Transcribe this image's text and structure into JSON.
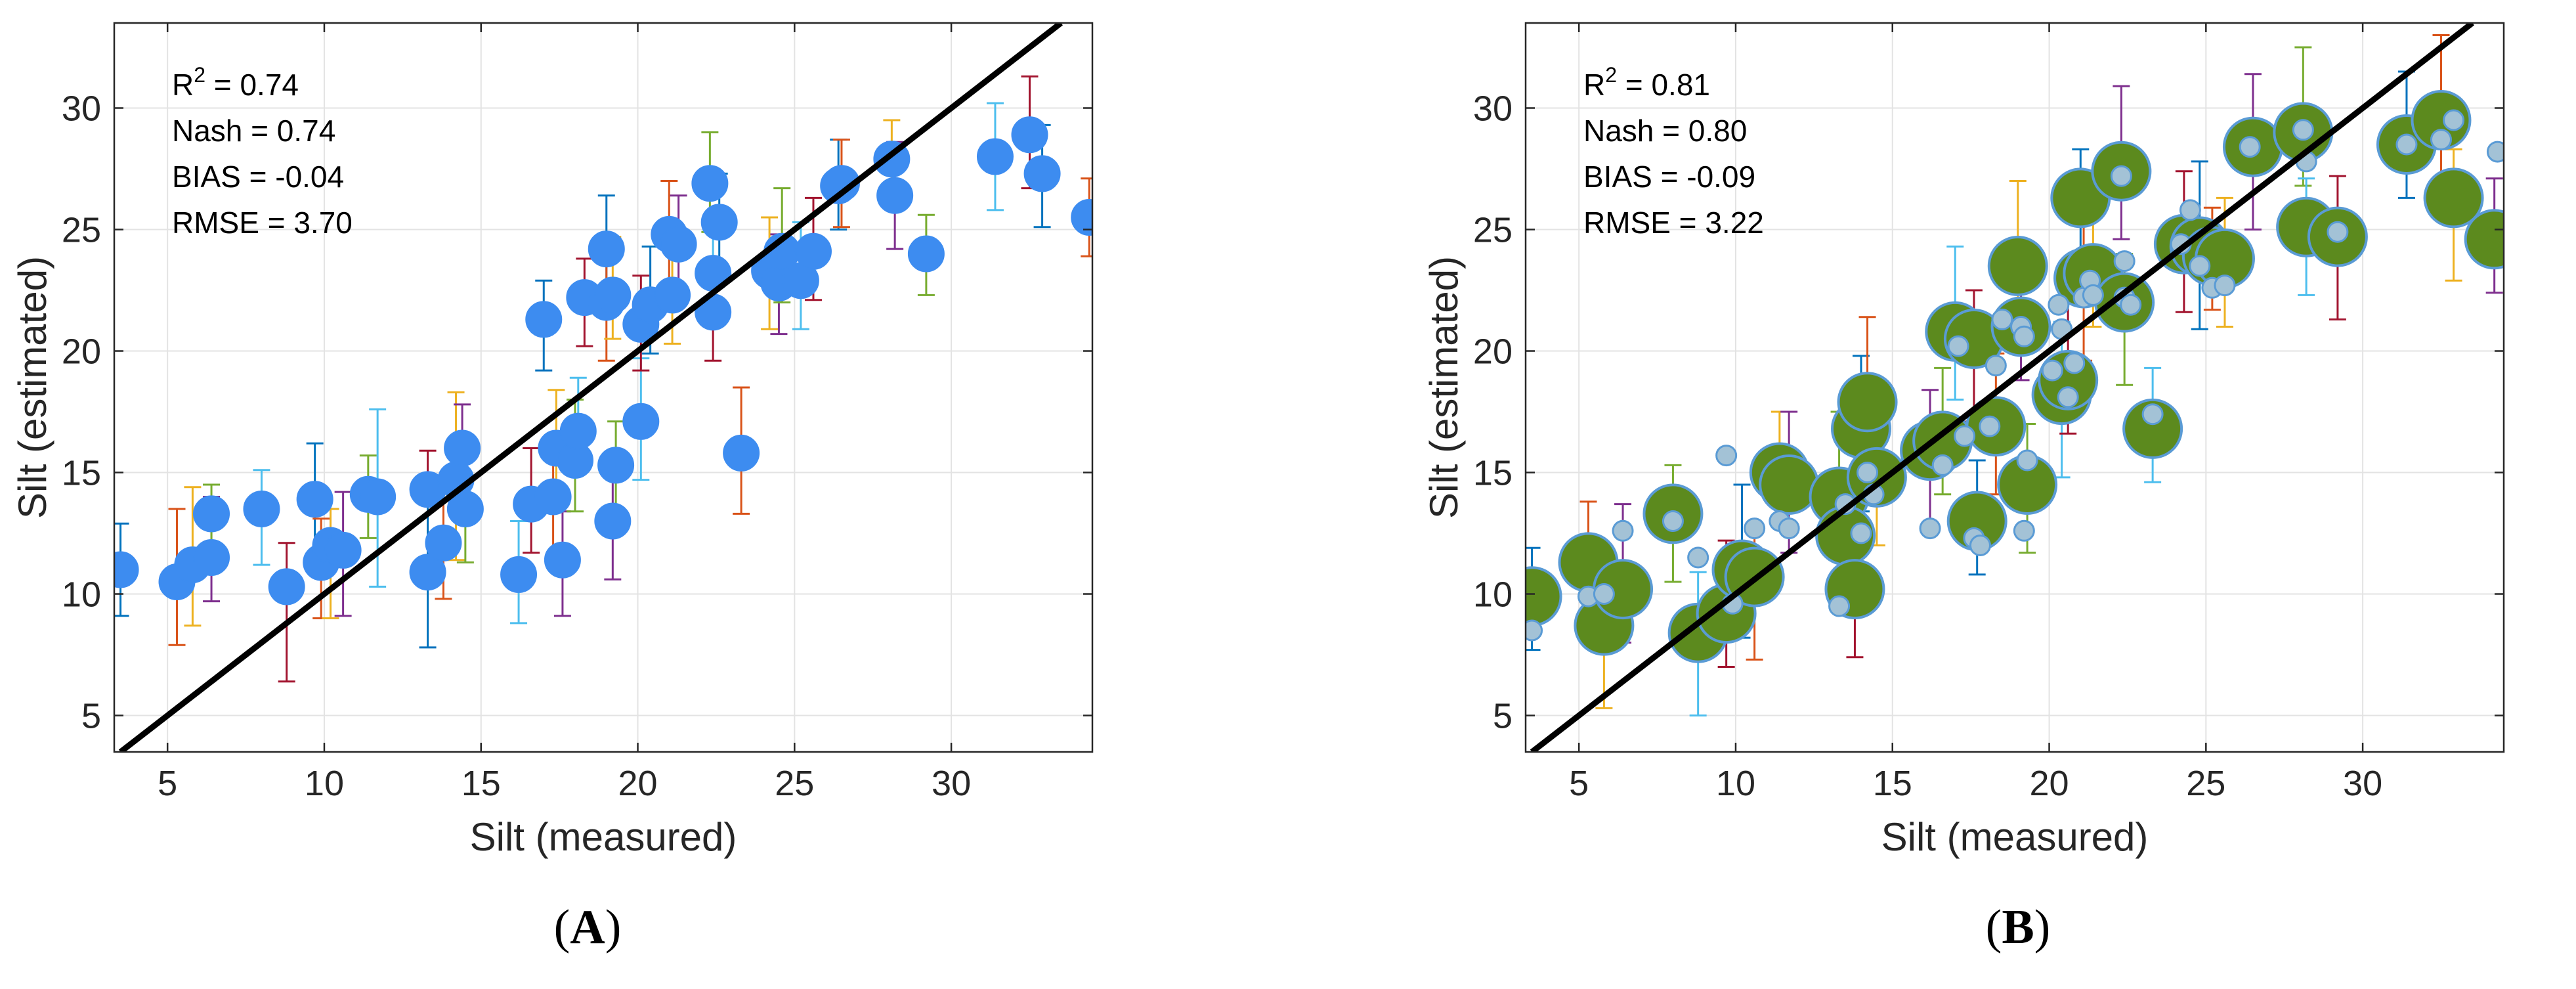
{
  "chart_data": [
    {
      "type": "scatter",
      "panel_label": "A",
      "xlabel": "Silt (measured)",
      "ylabel": "Silt (estimated)",
      "xlim": [
        3.3,
        34.5
      ],
      "ylim": [
        3.5,
        33.5
      ],
      "xticks": [
        5,
        10,
        15,
        20,
        25,
        30
      ],
      "yticks": [
        5,
        10,
        15,
        20,
        25,
        30
      ],
      "grid": true,
      "reference_line": "1:1",
      "stats": [
        "Nash = 0.74",
        "BIAS = -0.04",
        "RMSE = 3.70"
      ],
      "r2_prefix": "R",
      "r2_sup": "2",
      "r2_value": " = 0.74",
      "marker_color": "#3D8CF0",
      "points": [
        [
          3.5,
          11.0,
          1.9,
          1.9
        ],
        [
          5.3,
          10.5,
          2.6,
          3.0
        ],
        [
          5.8,
          11.2,
          2.5,
          3.2
        ],
        [
          6.4,
          11.5,
          1.8,
          2.5
        ],
        [
          6.4,
          13.3,
          1.6,
          1.2
        ],
        [
          8.0,
          13.5,
          2.3,
          1.6
        ],
        [
          8.8,
          10.3,
          3.9,
          1.8
        ],
        [
          9.7,
          13.9,
          2.3,
          2.3
        ],
        [
          9.9,
          11.3,
          2.3,
          1.8
        ],
        [
          10.2,
          12.0,
          3.0,
          1.5
        ],
        [
          10.6,
          11.8,
          2.7,
          2.4
        ],
        [
          11.4,
          14.1,
          1.8,
          1.6
        ],
        [
          11.7,
          14.0,
          3.7,
          3.6
        ],
        [
          13.3,
          14.3,
          3.0,
          1.6
        ],
        [
          13.3,
          10.9,
          3.1,
          3.2
        ],
        [
          13.8,
          12.1,
          2.3,
          1.8
        ],
        [
          14.2,
          14.7,
          3.3,
          3.6
        ],
        [
          14.4,
          16.0,
          1.6,
          1.8
        ],
        [
          14.5,
          13.5,
          2.2,
          2.0
        ],
        [
          16.2,
          10.8,
          2.0,
          2.2
        ],
        [
          16.6,
          13.7,
          2.0,
          2.3
        ],
        [
          17.0,
          21.3,
          2.1,
          1.6
        ],
        [
          17.3,
          14.0,
          2.5,
          2.2
        ],
        [
          17.4,
          16.0,
          2.3,
          2.4
        ],
        [
          17.6,
          11.4,
          2.3,
          2.0
        ],
        [
          18.0,
          15.5,
          2.1,
          2.5
        ],
        [
          18.1,
          16.7,
          1.6,
          2.2
        ],
        [
          18.3,
          22.2,
          2.0,
          1.6
        ],
        [
          19.0,
          24.2,
          2.3,
          2.2
        ],
        [
          19.0,
          22.0,
          2.4,
          2.0
        ],
        [
          19.2,
          22.3,
          1.8,
          2.4
        ],
        [
          19.2,
          13.0,
          2.4,
          2.2
        ],
        [
          19.3,
          15.3,
          2.3,
          1.8
        ],
        [
          20.1,
          17.1,
          2.4,
          2.6
        ],
        [
          20.1,
          21.1,
          1.9,
          2.0
        ],
        [
          20.4,
          21.9,
          2.0,
          2.4
        ],
        [
          21.0,
          24.8,
          2.8,
          2.2
        ],
        [
          21.1,
          22.3,
          2.0,
          2.2
        ],
        [
          21.3,
          24.4,
          2.2,
          2.0
        ],
        [
          22.3,
          26.9,
          2.0,
          2.1
        ],
        [
          22.4,
          23.2,
          2.0,
          2.0
        ],
        [
          22.4,
          21.6,
          2.0,
          2.2
        ],
        [
          22.6,
          25.3,
          2.3,
          2.0
        ],
        [
          23.3,
          15.8,
          2.5,
          2.7
        ],
        [
          24.2,
          23.3,
          2.4,
          2.2
        ],
        [
          24.5,
          22.8,
          2.1,
          2.0
        ],
        [
          24.6,
          24.1,
          2.1,
          2.6
        ],
        [
          25.2,
          22.9,
          2.0,
          2.4
        ],
        [
          25.6,
          24.1,
          2.0,
          2.2
        ],
        [
          26.4,
          26.8,
          1.8,
          1.9
        ],
        [
          26.5,
          26.9,
          1.8,
          1.8
        ],
        [
          28.1,
          27.9,
          1.8,
          1.6
        ],
        [
          28.2,
          26.4,
          2.2,
          2.2
        ],
        [
          29.2,
          24.0,
          1.7,
          1.6
        ],
        [
          31.4,
          28.0,
          2.2,
          2.2
        ],
        [
          32.5,
          28.9,
          2.2,
          2.4
        ],
        [
          32.9,
          27.3,
          2.2,
          2.0
        ],
        [
          34.4,
          25.5,
          1.6,
          1.6
        ]
      ]
    },
    {
      "type": "scatter",
      "panel_label": "B",
      "xlabel": "Silt (measured)",
      "ylabel": "Silt (estimated)",
      "xlim": [
        3.3,
        34.5
      ],
      "ylim": [
        3.5,
        33.5
      ],
      "xticks": [
        5,
        10,
        15,
        20,
        25,
        30
      ],
      "yticks": [
        5,
        10,
        15,
        20,
        25,
        30
      ],
      "grid": true,
      "reference_line": "1:1",
      "stats": [
        "Nash = 0.80",
        "BIAS = -0.09",
        "RMSE = 3.22"
      ],
      "r2_prefix": "R",
      "r2_sup": "2",
      "r2_value": " = 0.81",
      "big_marker_color": "#5C8A1E",
      "big_marker_edge": "#5A9BD5",
      "small_marker_color": "#A3C2D6",
      "small_marker_edge": "#5A9BD5",
      "big_points": [
        [
          3.5,
          9.9
        ],
        [
          5.3,
          11.3
        ],
        [
          5.8,
          8.7
        ],
        [
          6.4,
          10.2
        ],
        [
          8.0,
          13.3
        ],
        [
          8.8,
          8.4
        ],
        [
          9.7,
          9.2
        ],
        [
          10.2,
          11.0
        ],
        [
          10.6,
          10.7
        ],
        [
          11.4,
          15.0
        ],
        [
          11.7,
          14.5
        ],
        [
          13.3,
          14.0
        ],
        [
          13.5,
          12.4
        ],
        [
          13.8,
          10.2
        ],
        [
          14.0,
          16.8
        ],
        [
          14.2,
          17.9
        ],
        [
          14.5,
          14.8
        ],
        [
          16.2,
          15.9
        ],
        [
          16.6,
          16.3
        ],
        [
          17.0,
          20.8
        ],
        [
          17.6,
          20.5
        ],
        [
          17.7,
          13.0
        ],
        [
          18.3,
          16.9
        ],
        [
          19.0,
          23.5
        ],
        [
          19.1,
          21.0
        ],
        [
          19.3,
          14.5
        ],
        [
          20.4,
          18.2
        ],
        [
          20.6,
          18.8
        ],
        [
          21.0,
          26.3
        ],
        [
          21.1,
          23.0
        ],
        [
          21.4,
          23.2
        ],
        [
          22.3,
          27.4
        ],
        [
          22.4,
          22.0
        ],
        [
          23.3,
          16.8
        ],
        [
          24.3,
          24.4
        ],
        [
          24.8,
          24.3
        ],
        [
          25.2,
          23.9
        ],
        [
          25.6,
          23.8
        ],
        [
          26.5,
          28.4
        ],
        [
          28.1,
          29.0
        ],
        [
          28.2,
          25.1
        ],
        [
          29.2,
          24.7
        ],
        [
          31.4,
          28.5
        ],
        [
          32.5,
          29.5
        ],
        [
          32.9,
          26.3
        ],
        [
          34.2,
          24.6
        ]
      ],
      "small_points": [
        [
          3.5,
          8.5
        ],
        [
          5.3,
          9.9
        ],
        [
          5.8,
          10.0
        ],
        [
          6.4,
          12.6
        ],
        [
          8.0,
          13.0
        ],
        [
          8.8,
          11.5
        ],
        [
          9.7,
          15.7
        ],
        [
          9.9,
          9.6
        ],
        [
          10.6,
          12.7
        ],
        [
          11.4,
          13.0
        ],
        [
          11.7,
          12.7
        ],
        [
          13.3,
          9.5
        ],
        [
          13.5,
          13.7
        ],
        [
          14.0,
          12.5
        ],
        [
          14.2,
          15.0
        ],
        [
          14.4,
          14.1
        ],
        [
          16.2,
          12.7
        ],
        [
          16.6,
          15.3
        ],
        [
          17.1,
          20.2
        ],
        [
          17.3,
          16.5
        ],
        [
          17.6,
          12.3
        ],
        [
          17.8,
          12.0
        ],
        [
          18.1,
          16.9
        ],
        [
          18.3,
          19.4
        ],
        [
          18.5,
          21.3
        ],
        [
          19.1,
          21.0
        ],
        [
          19.2,
          20.6
        ],
        [
          19.2,
          12.6
        ],
        [
          19.3,
          15.5
        ],
        [
          20.1,
          19.2
        ],
        [
          20.3,
          21.9
        ],
        [
          20.4,
          20.9
        ],
        [
          20.6,
          18.1
        ],
        [
          20.8,
          19.5
        ],
        [
          21.1,
          22.2
        ],
        [
          21.3,
          22.9
        ],
        [
          21.4,
          22.3
        ],
        [
          22.3,
          27.2
        ],
        [
          22.4,
          23.7
        ],
        [
          22.4,
          22.2
        ],
        [
          22.6,
          21.9
        ],
        [
          23.3,
          17.4
        ],
        [
          24.2,
          24.4
        ],
        [
          24.5,
          25.8
        ],
        [
          24.8,
          23.5
        ],
        [
          25.2,
          22.6
        ],
        [
          25.6,
          22.7
        ],
        [
          26.4,
          28.4
        ],
        [
          28.1,
          29.1
        ],
        [
          28.2,
          27.8
        ],
        [
          29.2,
          24.9
        ],
        [
          31.4,
          28.5
        ],
        [
          32.5,
          28.7
        ],
        [
          32.9,
          29.5
        ],
        [
          34.3,
          28.2
        ]
      ]
    }
  ]
}
